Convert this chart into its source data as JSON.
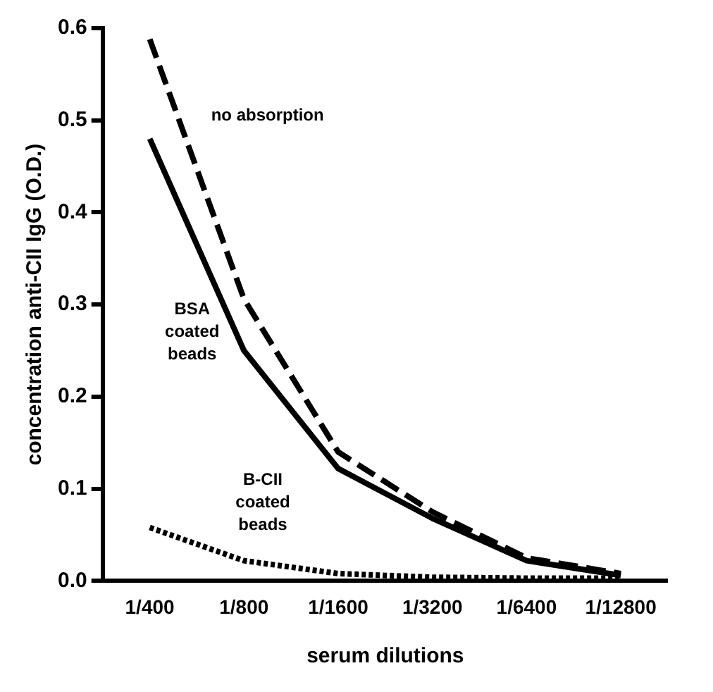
{
  "chart_data": {
    "type": "line",
    "xlabel": "serum dilutions",
    "ylabel": "concentration anti-CII IgG (O.D.)",
    "categories": [
      "1/400",
      "1/800",
      "1/1600",
      "1/3200",
      "1/6400",
      "1/12800"
    ],
    "ylim": [
      0,
      0.6
    ],
    "yticks": [
      {
        "value": 0,
        "label": "0.0"
      },
      0.1,
      0.2,
      0.3,
      0.4,
      0.5,
      0.6
    ],
    "grid": false,
    "legend": false,
    "marker": "none",
    "series": [
      {
        "name": "no absorption",
        "color": "#000000",
        "line_style": "dashed",
        "values": [
          0.588,
          0.306,
          0.14,
          0.075,
          0.025,
          0.008
        ]
      },
      {
        "name": "BSA coated beads",
        "color": "#000000",
        "line_style": "solid",
        "values": [
          0.48,
          0.25,
          0.122,
          0.068,
          0.022,
          0.006
        ]
      },
      {
        "name": "B-CII coated beads",
        "color": "#000000",
        "line_style": "dotted",
        "values": [
          0.058,
          0.022,
          0.008,
          0.004,
          0.003,
          0.003
        ]
      }
    ]
  }
}
